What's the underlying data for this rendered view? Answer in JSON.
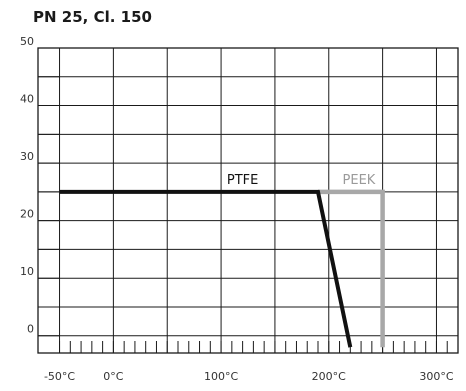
{
  "chart_data": {
    "type": "line",
    "title": "PN 25, Cl. 150",
    "xlabel": "",
    "ylabel": "",
    "xlim": [
      -70,
      320
    ],
    "ylim": [
      -3,
      50
    ],
    "x_ticks": [
      {
        "value": -50,
        "label": "-50°C"
      },
      {
        "value": 0,
        "label": "0°C"
      },
      {
        "value": 100,
        "label": "100°C"
      },
      {
        "value": 200,
        "label": "200°C"
      },
      {
        "value": 300,
        "label": "300°C"
      }
    ],
    "y_ticks": [
      {
        "value": 0,
        "label": "0"
      },
      {
        "value": 10,
        "label": "10"
      },
      {
        "value": 20,
        "label": "20"
      },
      {
        "value": 30,
        "label": "30"
      },
      {
        "value": 40,
        "label": "40"
      },
      {
        "value": 50,
        "label": "50"
      }
    ],
    "grid": true,
    "series": [
      {
        "name": "PTFE",
        "color": "#111111",
        "points": [
          [
            -50,
            25
          ],
          [
            190,
            25
          ],
          [
            220,
            -2
          ]
        ]
      },
      {
        "name": "PEEK",
        "color": "#a8a8a8",
        "points": [
          [
            190,
            25
          ],
          [
            250,
            25
          ],
          [
            250,
            -2
          ]
        ]
      }
    ]
  }
}
